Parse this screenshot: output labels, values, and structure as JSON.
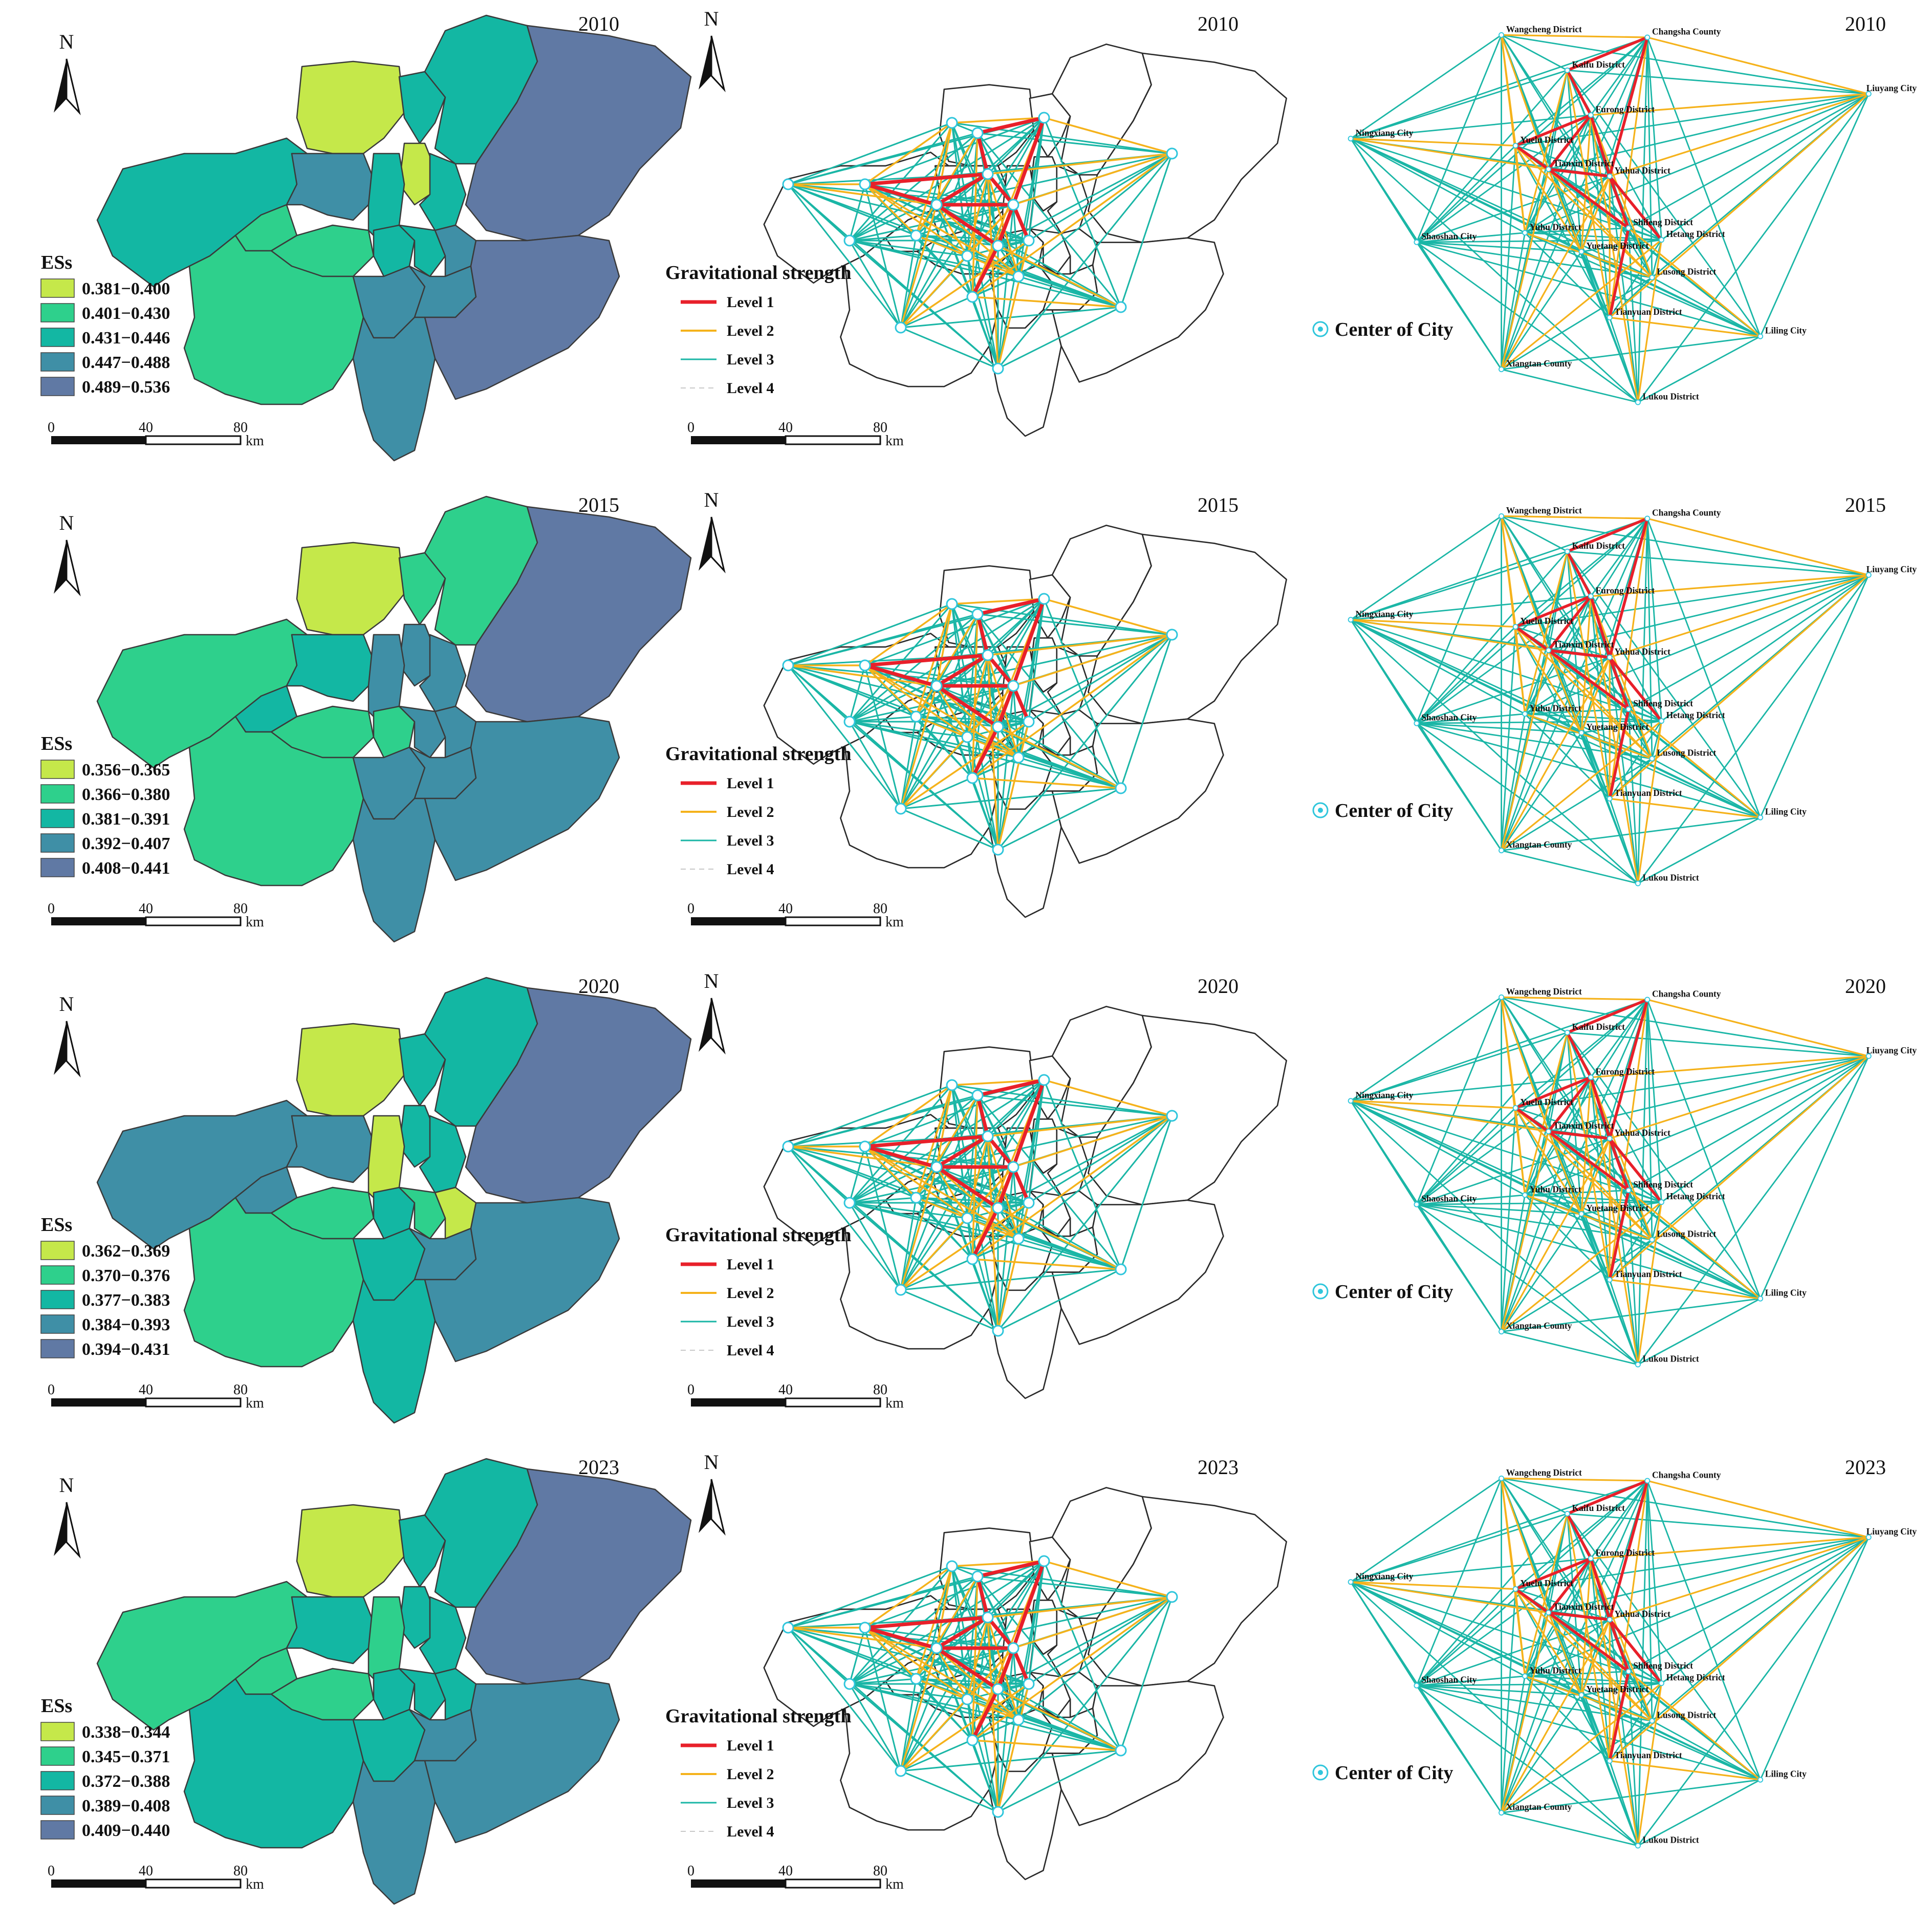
{
  "north_label": "N",
  "km_label": "km",
  "scale_ticks": [
    "0",
    "40",
    "80"
  ],
  "legend_title": "ESs",
  "gravity_title": "Gravitational strength",
  "center_label": "Center of City",
  "level_labels": [
    "Level 1",
    "Level 2",
    "Level 3",
    "Level 4"
  ],
  "colors": {
    "ess_classes": [
      "#c5e84a",
      "#2ed08c",
      "#13b7a3",
      "#3f8fa6",
      "#6079a4"
    ],
    "level1": "#e8202a",
    "level2": "#f5b21b",
    "level3": "#1ab6a6",
    "level4": "#c8c8c8",
    "node": "#2fc6dc",
    "boundary": "#3a3a3a"
  },
  "district_labels": {
    "wangcheng": "Wangcheng District",
    "changsha_county": "Changsha County",
    "kaifu": "Kaifu District",
    "liuyang": "Liuyang City",
    "furong": "Furong District",
    "ningxiang": "Ningxiang City",
    "yuelu": "Yuelu District",
    "tianxin": "Tianxin District",
    "yuhua": "Yuhua District",
    "shaoshan": "Shaoshan City",
    "yuhu": "Yuhu District",
    "shifeng": "Shifeng District",
    "hetang": "Hetang District",
    "yuetang": "Yuetang District",
    "lusong": "Lusong District",
    "tianyuan": "Tianyuan District",
    "liling": "Liling City",
    "xiangtan_county": "Xiangtan County",
    "lukou": "Lukou District"
  },
  "panels": [
    {
      "year": "2010",
      "ess_ranges": [
        "0.381−0.400",
        "0.401−0.430",
        "0.431−0.446",
        "0.447−0.488",
        "0.489−0.536"
      ],
      "region_classes": {
        "ningxiang": 2,
        "wangcheng": 0,
        "kaifu": 2,
        "yuelu": 3,
        "furong": 0,
        "tianxin": 2,
        "yuhua": 2,
        "changsha": 2,
        "liuyang": 4,
        "shaoshan": 1,
        "yuhu": 1,
        "yuetang": 2,
        "shifeng": 2,
        "hetang": 3,
        "xiangtan": 1,
        "tianyuan": 3,
        "lusong": 3,
        "lukou": 3,
        "liling": 4
      }
    },
    {
      "year": "2015",
      "ess_ranges": [
        "0.356−0.365",
        "0.366−0.380",
        "0.381−0.391",
        "0.392−0.407",
        "0.408−0.441"
      ],
      "region_classes": {
        "ningxiang": 1,
        "wangcheng": 0,
        "kaifu": 1,
        "yuelu": 2,
        "furong": 3,
        "tianxin": 3,
        "yuhua": 3,
        "changsha": 1,
        "liuyang": 4,
        "shaoshan": 2,
        "yuhu": 1,
        "yuetang": 1,
        "shifeng": 3,
        "hetang": 3,
        "xiangtan": 1,
        "tianyuan": 3,
        "lusong": 3,
        "lukou": 3,
        "liling": 3
      }
    },
    {
      "year": "2020",
      "ess_ranges": [
        "0.362−0.369",
        "0.370−0.376",
        "0.377−0.383",
        "0.384−0.393",
        "0.394−0.431"
      ],
      "region_classes": {
        "ningxiang": 3,
        "wangcheng": 0,
        "kaifu": 2,
        "yuelu": 3,
        "furong": 2,
        "tianxin": 0,
        "yuhua": 2,
        "changsha": 2,
        "liuyang": 4,
        "shaoshan": 3,
        "yuhu": 1,
        "yuetang": 2,
        "shifeng": 1,
        "hetang": 0,
        "xiangtan": 1,
        "tianyuan": 2,
        "lusong": 3,
        "lukou": 2,
        "liling": 3
      }
    },
    {
      "year": "2023",
      "ess_ranges": [
        "0.338−0.344",
        "0.345−0.371",
        "0.372−0.388",
        "0.389−0.408",
        "0.409−0.440"
      ],
      "region_classes": {
        "ningxiang": 1,
        "wangcheng": 0,
        "kaifu": 2,
        "yuelu": 2,
        "furong": 2,
        "tianxin": 1,
        "yuhua": 2,
        "changsha": 2,
        "liuyang": 4,
        "shaoshan": 1,
        "yuhu": 1,
        "yuetang": 2,
        "shifeng": 2,
        "hetang": 2,
        "xiangtan": 2,
        "tianyuan": 2,
        "lusong": 3,
        "lukou": 3,
        "liling": 3
      }
    }
  ]
}
